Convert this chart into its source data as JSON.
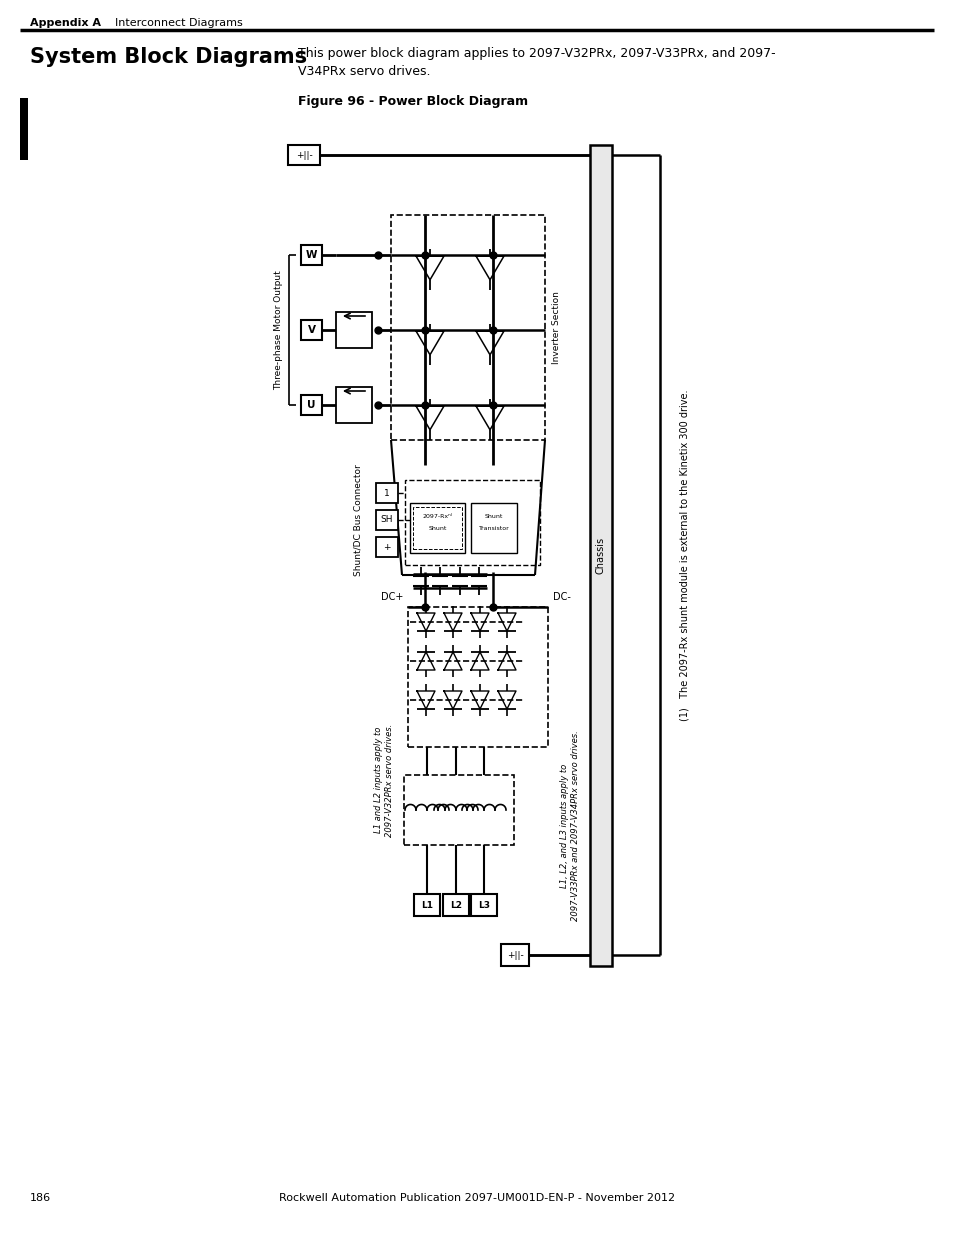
{
  "page_title": "System Block Diagrams",
  "header_left": "Appendix A",
  "header_right": "Interconnect Diagrams",
  "body_line1": "This power block diagram applies to 2097-V32PRx, 2097-V33PRx, and 2097-",
  "body_line2": "V34PRx servo drives.",
  "figure_caption": "Figure 96 - Power Block Diagram",
  "footer_page": "186",
  "footer_center": "Rockwell Automation Publication 2097-UM001D-EN-P - November 2012",
  "label_three_phase": "Three-phase Motor Output",
  "label_inverter": "Inverter Section",
  "label_shunt": "Shunt/DC Bus Connector",
  "label_chassis": "Chassis",
  "label_dc_plus": "DC+",
  "label_dc_minus": "DC-",
  "label_l1l2": "L1 and L2 inputs apply to\n2097-V32PRx servo drives.",
  "label_l1l2l3": "L1, L2, and L3 inputs apply to\n2097-V33PRx and 2097-V34PRx servo drives.",
  "footnote": "(1)   The 2097-Rx shunt module is external to the Kinetix 300 drive.",
  "bg_color": "#ffffff"
}
